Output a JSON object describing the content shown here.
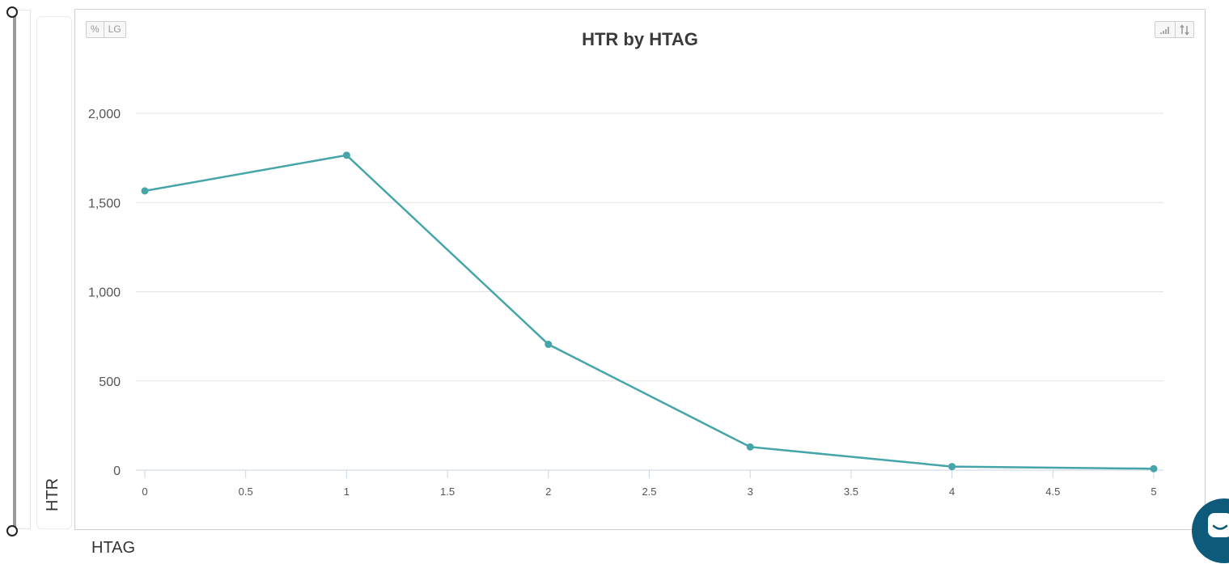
{
  "chart_data": {
    "type": "line",
    "title": "HTR by HTAG",
    "xlabel": "HTAG",
    "ylabel": "HTR",
    "x": [
      0,
      1,
      2,
      3,
      4,
      5
    ],
    "series": [
      {
        "values": [
          1565,
          1765,
          705,
          130,
          20,
          8
        ]
      }
    ],
    "xlim": [
      0,
      5
    ],
    "ylim": [
      0,
      2000
    ],
    "xticks": [
      "0",
      "0.5",
      "1",
      "1.5",
      "2",
      "2.5",
      "3",
      "3.5",
      "4",
      "4.5",
      "5"
    ],
    "yticks": [
      "0",
      "500",
      "1,000",
      "1,500",
      "2,000"
    ],
    "grid": true,
    "line_color": "#45a5a8"
  },
  "toolbar": {
    "left_buttons": [
      "%",
      "LG"
    ],
    "right_buttons": [
      "signal-bars-icon",
      "sort-arrows-icon"
    ]
  },
  "chat": {
    "icon": "chat-icon"
  }
}
